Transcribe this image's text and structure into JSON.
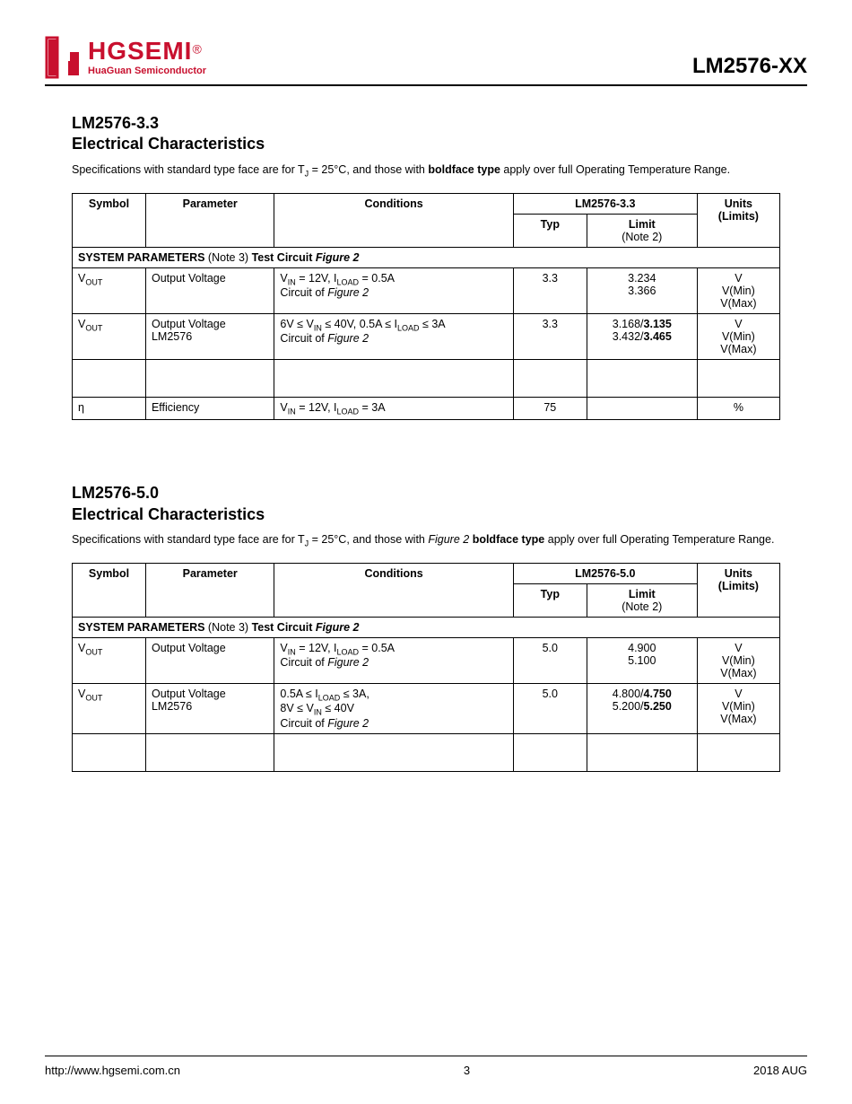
{
  "header": {
    "logo_main": "HGSEMI",
    "logo_sub": "HuaGuan Semiconductor",
    "part_number": "LM2576-XX"
  },
  "section1": {
    "title_line1": "LM2576-3.3",
    "title_line2": "Electrical Characteristics",
    "spec_note_pre": "Specifications with standard type face are for T",
    "spec_note_sub": "J",
    "spec_note_mid": " = 25°C, and those with ",
    "spec_note_bold": "boldface type",
    "spec_note_post": " apply over full Operating Temperature Range.",
    "table": {
      "headers": {
        "symbol": "Symbol",
        "parameter": "Parameter",
        "conditions": "Conditions",
        "device": "LM2576-3.3",
        "typ": "Typ",
        "limit": "Limit",
        "limit_note": "(Note 2)",
        "units": "Units",
        "units_sub": "(Limits)"
      },
      "sys_row_bold": "SYSTEM PARAMETERS",
      "sys_row_note": " (Note 3) ",
      "sys_row_test": "Test Circuit ",
      "sys_row_fig": "Figure 2",
      "rows": [
        {
          "symbol_html": "V<sub>OUT</sub>",
          "parameter": "Output Voltage",
          "cond_lines": [
            "V<sub>IN</sub> = 12V, I<sub>LOAD</sub> = 0.5A",
            "Circuit of <span class='italic'>Figure 2</span>"
          ],
          "typ": [
            "3.3",
            "",
            ""
          ],
          "limit": [
            "",
            "3.234",
            "3.366"
          ],
          "units": [
            "V",
            "V(Min)",
            "V(Max)"
          ]
        },
        {
          "symbol_html": "V<sub>OUT</sub>",
          "parameter": "Output Voltage<br>LM2576",
          "cond_lines": [
            "6V ≤ V<sub>IN</sub> ≤ 40V, 0.5A ≤ I<sub>LOAD</sub> ≤ 3A",
            "Circuit of <span class='italic'>Figure 2</span>"
          ],
          "typ": [
            "3.3",
            "",
            ""
          ],
          "limit": [
            "",
            "3.168/<span class='bold'>3.135</span>",
            "3.432/<span class='bold'>3.465</span>"
          ],
          "units": [
            "V",
            "V(Min)",
            "V(Max)"
          ]
        }
      ],
      "efficiency": {
        "symbol": "η",
        "parameter": "Efficiency",
        "conditions": "V<sub>IN</sub> = 12V, I<sub>LOAD</sub> = 3A",
        "typ": "75",
        "limit": "",
        "units": "%"
      }
    }
  },
  "section2": {
    "title_line1": "LM2576-5.0",
    "title_line2": "Electrical Characteristics",
    "spec_note_pre": "Specifications with standard type face are for T",
    "spec_note_sub": "J",
    "spec_note_mid1": " = 25°C, and those with ",
    "spec_note_italic": "Figure 2",
    "spec_note_mid2": " ",
    "spec_note_bold": "boldface type",
    "spec_note_post": " apply over full Operating Temperature Range.",
    "table": {
      "headers": {
        "symbol": "Symbol",
        "parameter": "Parameter",
        "conditions": "Conditions",
        "device": "LM2576-5.0",
        "typ": "Typ",
        "limit": "Limit",
        "limit_note": "(Note 2)",
        "units": "Units",
        "units_sub": "(Limits)"
      },
      "sys_row_bold": "SYSTEM PARAMETERS",
      "sys_row_note": " (Note 3) ",
      "sys_row_test": "Test Circuit ",
      "sys_row_fig": "Figure 2",
      "rows": [
        {
          "symbol_html": "V<sub>OUT</sub>",
          "parameter": "Output Voltage",
          "cond_lines": [
            "V<sub>IN</sub> = 12V, I<sub>LOAD</sub> = 0.5A",
            "Circuit of <span class='italic'>Figure 2</span>"
          ],
          "typ": [
            "5.0",
            "",
            ""
          ],
          "limit": [
            "",
            "4.900",
            "5.100"
          ],
          "units": [
            "V",
            "V(Min)",
            "V(Max)"
          ]
        },
        {
          "symbol_html": "V<sub>OUT</sub>",
          "parameter": "Output Voltage<br>LM2576",
          "cond_lines": [
            "0.5A ≤ I<sub>LOAD</sub> ≤ 3A,",
            "8V ≤ V<sub>IN</sub> ≤ 40V",
            "Circuit of <span class='italic'>Figure 2</span>"
          ],
          "typ": [
            "5.0",
            "",
            ""
          ],
          "limit": [
            "",
            "4.800/<span class='bold'>4.750</span>",
            "5.200/<span class='bold'>5.250</span>"
          ],
          "units": [
            "V",
            "V(Min)",
            "V(Max)"
          ]
        }
      ]
    }
  },
  "footer": {
    "url": "http://www.hgsemi.com.cn",
    "page": "3",
    "date": "2018 AUG"
  },
  "colors": {
    "brand": "#c8102e",
    "text": "#000000",
    "border": "#000000",
    "background": "#ffffff"
  }
}
